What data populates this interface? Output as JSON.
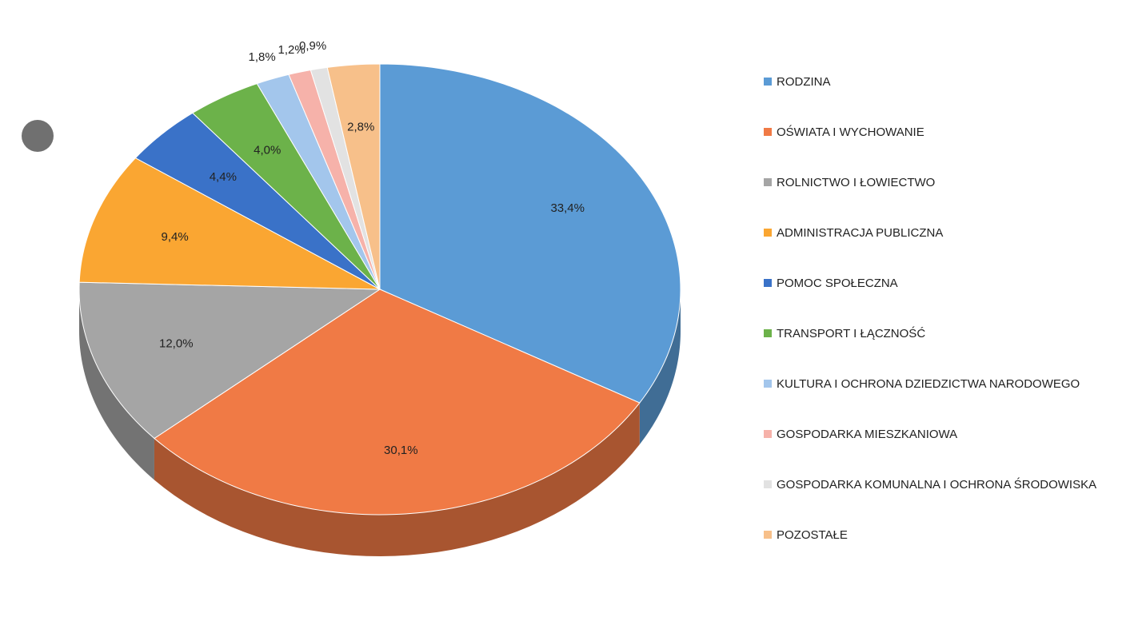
{
  "chart_data": {
    "type": "pie",
    "categories": [
      "RODZINA",
      "OŚWIATA I WYCHOWANIE",
      "ROLNICTWO I ŁOWIECTWO",
      "ADMINISTRACJA PUBLICZNA",
      "POMOC SPOŁECZNA",
      "TRANSPORT I ŁĄCZNOŚĆ",
      "KULTURA I OCHRONA DZIEDZICTWA NARODOWEGO",
      "GOSPODARKA MIESZKANIOWA",
      "GOSPODARKA KOMUNALNA I OCHRONA ŚRODOWISKA",
      "POZOSTAŁE"
    ],
    "values": [
      33.4,
      30.1,
      12.0,
      9.4,
      4.4,
      4.0,
      1.8,
      1.2,
      0.9,
      2.8
    ],
    "value_labels": [
      "33,4%",
      "30,1%",
      "12,0%",
      "9,4%",
      "4,4%",
      "4,0%",
      "1,8%",
      "1,2%",
      "0,9%",
      "2,8%"
    ],
    "colors": [
      "#5b9bd5",
      "#f07a45",
      "#a5a5a5",
      "#faa632",
      "#3a72c8",
      "#6cb24a",
      "#a3c6ec",
      "#f6b2aa",
      "#e2e2e2",
      "#f7c08a"
    ],
    "legend": "right"
  }
}
